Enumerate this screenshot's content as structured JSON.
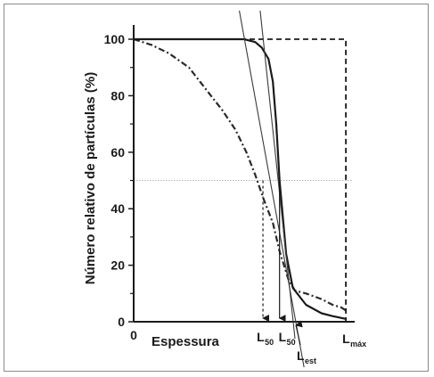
{
  "chart_data": {
    "type": "line",
    "title": "",
    "xlabel": "Espessura",
    "ylabel": "Número relativo de partículas (%)",
    "xlim": [
      0,
      1
    ],
    "ylim": [
      0,
      105
    ],
    "yticks": [
      0,
      20,
      40,
      60,
      80,
      100
    ],
    "xticks": [
      "0"
    ],
    "reference_line_y": 50,
    "series": [
      {
        "style": "dash-dot",
        "x": [
          0,
          0.08,
          0.16,
          0.25,
          0.33,
          0.4,
          0.46,
          0.51,
          0.55,
          0.59,
          0.63,
          0.66,
          0.7,
          0.73,
          0.78,
          0.85,
          0.9,
          0.94,
          0.96
        ],
        "y": [
          100,
          98,
          95,
          90,
          82,
          75,
          68,
          60,
          52,
          43,
          35,
          25,
          15,
          11,
          10,
          8,
          6,
          5,
          4
        ]
      },
      {
        "style": "solid",
        "x": [
          0,
          0.28,
          0.5,
          0.55,
          0.58,
          0.61,
          0.63,
          0.645,
          0.66,
          0.69,
          0.72,
          0.78,
          0.85,
          0.9,
          0.96
        ],
        "y": [
          100,
          100,
          100,
          99,
          97,
          93,
          85,
          70,
          50,
          24,
          12,
          6,
          3,
          2,
          1
        ]
      },
      {
        "style": "dashed",
        "x": [
          0,
          0.96,
          0.96
        ],
        "y": [
          100,
          100,
          0
        ]
      },
      {
        "style": "thin-solid",
        "x": [
          0.42,
          0.78
        ],
        "y": [
          135,
          -20
        ]
      },
      {
        "style": "thin-solid",
        "x": [
          0.54,
          0.73
        ],
        "y": [
          134,
          -6
        ]
      }
    ],
    "markers": [
      {
        "label": "L",
        "sub": "50",
        "x": 0.585
      },
      {
        "label": "L",
        "sub": "50",
        "x": 0.66
      },
      {
        "label": "L",
        "sub": "máx",
        "x": 0.96
      },
      {
        "label": "L",
        "sub": "est",
        "x": 0.73
      }
    ]
  }
}
